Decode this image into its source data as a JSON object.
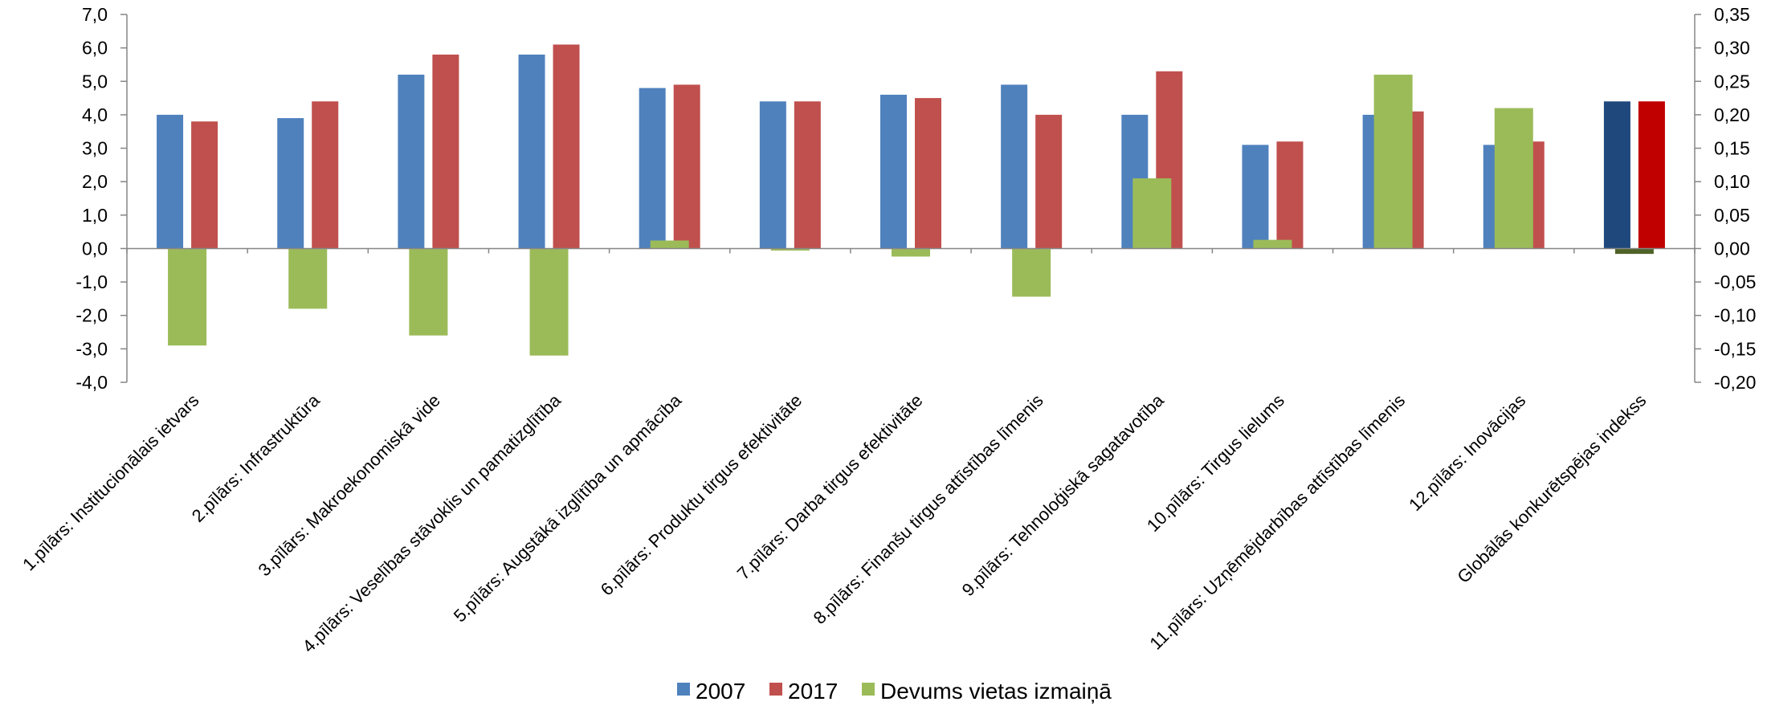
{
  "chart_data": {
    "type": "bar",
    "title": "",
    "categories": [
      "1.pīlārs: Institucionālais ietvars",
      "2.pīlārs: Infrastruktūra",
      "3.pīlārs: Makroekonomiskā vide",
      "4.pīlārs: Veselības stāvoklis un pamatizglītība",
      "5.pīlārs: Augstākā izglītība un apmācība",
      "6.pīlārs: Produktu tirgus efektivitāte",
      "7.pīlārs: Darba tirgus efektivitāte",
      "8.pīlārs: Finanšu tirgus attīstības līmenis",
      "9.pīlārs: Tehnoloģiskā sagatavotība",
      "10.pīlārs: Tirgus lielums",
      "11.pīlārs: Uzņēmējdarbības attīstības līmenis",
      "12.pīlārs: Inovācijas",
      "Globālās konkurētspējas indekss"
    ],
    "series": [
      {
        "name": "2007",
        "axis": "left",
        "color": "#4F81BD",
        "highlight_color": "#1F497D",
        "values": [
          4.0,
          3.9,
          5.2,
          5.8,
          4.8,
          4.4,
          4.6,
          4.9,
          4.0,
          3.1,
          4.0,
          3.1,
          4.4
        ]
      },
      {
        "name": "2017",
        "axis": "left",
        "color": "#C0504D",
        "highlight_color": "#C00000",
        "values": [
          3.8,
          4.4,
          5.8,
          6.1,
          4.9,
          4.4,
          4.5,
          4.0,
          5.3,
          3.2,
          4.1,
          3.2,
          4.4
        ]
      },
      {
        "name": "Devums vietas izmaiņā",
        "axis": "right",
        "color": "#9BBB59",
        "highlight_color": "#4F6228",
        "values": [
          -0.145,
          -0.09,
          -0.13,
          -0.16,
          0.012,
          -0.003,
          -0.012,
          -0.072,
          0.105,
          0.013,
          0.26,
          0.21,
          -0.008
        ]
      }
    ],
    "y_left": {
      "ylim": [
        -4.0,
        7.0
      ],
      "ticks": [
        "7,0",
        "6,0",
        "5,0",
        "4,0",
        "3,0",
        "2,0",
        "1,0",
        "0,0",
        "-1,0",
        "-2,0",
        "-3,0",
        "-4,0"
      ]
    },
    "y_right": {
      "ylim": [
        -0.2,
        0.35
      ],
      "ticks": [
        "0,35",
        "0,30",
        "0,25",
        "0,20",
        "0,15",
        "0,10",
        "0,05",
        "0,00",
        "-0,05",
        "-0,10",
        "-0,15",
        "-0,20"
      ]
    },
    "grid": false,
    "legend_position": "bottom-center",
    "legend": [
      "2007",
      "2017",
      "Devums vietas izmaiņā"
    ]
  }
}
